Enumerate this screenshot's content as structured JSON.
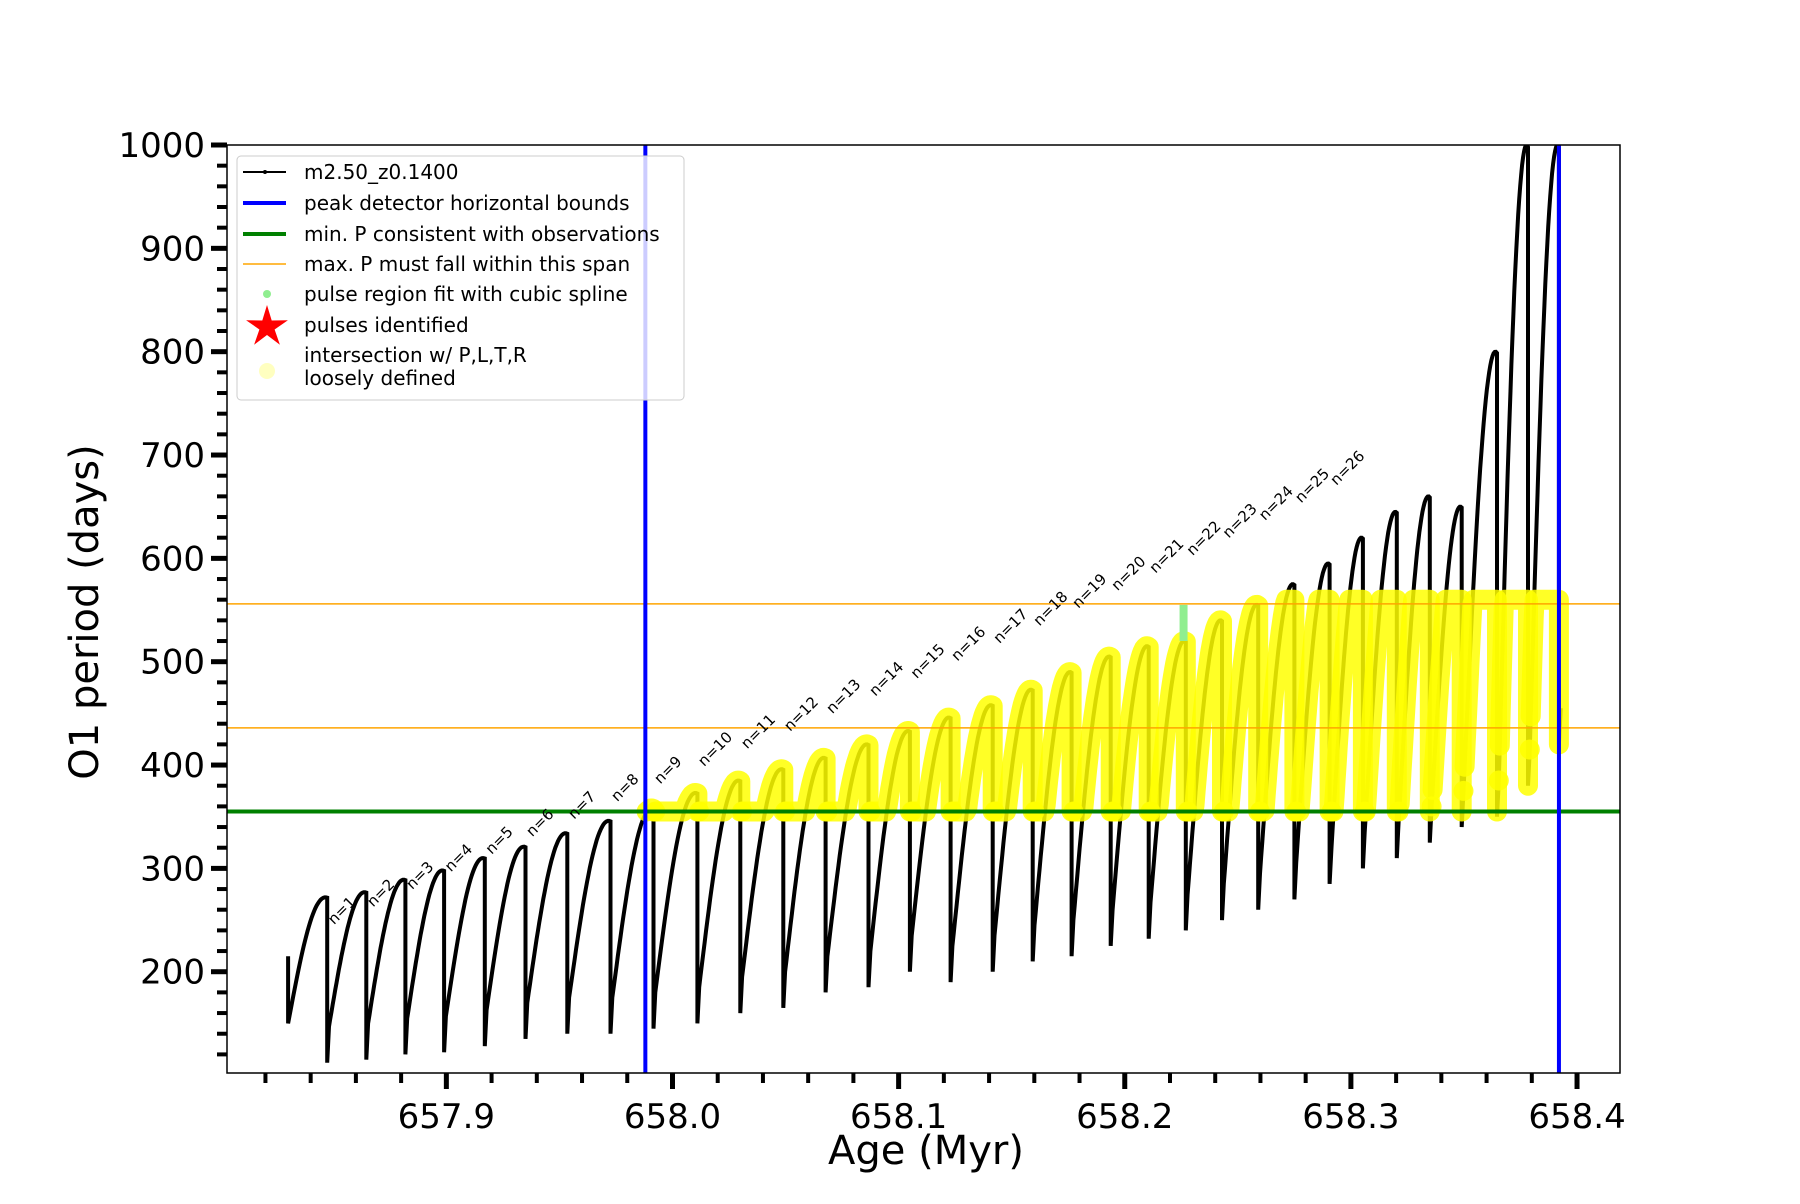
{
  "chart_data": {
    "type": "line",
    "title": "",
    "xlabel": "Age (Myr)",
    "ylabel": "O1 period (days)",
    "xlim": [
      657.803,
      658.419
    ],
    "ylim": [
      102,
      1000
    ],
    "xticks": [
      657.9,
      658.0,
      658.1,
      658.2,
      658.3,
      658.4
    ],
    "xtick_labels": [
      "657.9",
      "658.0",
      "658.1",
      "658.2",
      "658.3",
      "658.4"
    ],
    "yticks": [
      200,
      300,
      400,
      500,
      600,
      700,
      800,
      900,
      1000
    ],
    "ytick_labels": [
      "200",
      "300",
      "400",
      "500",
      "600",
      "700",
      "800",
      "900",
      "1000"
    ],
    "grid": false,
    "legend_position": "top-left",
    "legend": [
      {
        "label": "m2.50_z0.1400",
        "kind": "line-dot",
        "color": "#000000"
      },
      {
        "label": "peak detector horizontal bounds",
        "kind": "thick-line",
        "color": "#0000ff"
      },
      {
        "label": "min. P consistent with observations",
        "kind": "thick-line",
        "color": "#008000"
      },
      {
        "label": "max. P must fall within this span",
        "kind": "thin-line",
        "color": "#ffa500"
      },
      {
        "label": "pulse region fit with cubic spline",
        "kind": "dot",
        "color": "#90ee90"
      },
      {
        "label": "pulses identified",
        "kind": "star",
        "color": "#ff0000"
      },
      {
        "label": "intersection w/ P,L,T,R",
        "label2": "loosely defined",
        "kind": "big-dot",
        "color": "#ffffc0"
      }
    ],
    "vertical_bounds": [
      657.988,
      658.392
    ],
    "min_period_line": 355,
    "max_period_span": [
      436,
      556
    ],
    "series_start": {
      "age": 657.83,
      "period": 215
    },
    "pulses": {
      "drop_ages": [
        657.8473,
        657.8646,
        657.8819,
        657.899,
        657.917,
        657.935,
        657.9535,
        657.9726,
        657.9916,
        658.011,
        658.03,
        658.049,
        658.0677,
        658.0867,
        658.105,
        658.123,
        658.1416,
        658.1593,
        658.1765,
        658.1938,
        658.2106,
        658.227,
        658.243,
        658.259,
        658.275,
        658.2906,
        658.3053,
        658.3203,
        658.3349,
        658.349,
        658.3646,
        658.3783,
        658.392
      ],
      "peak_periods": [
        272,
        277,
        289,
        298,
        310,
        321,
        334,
        346,
        358,
        373,
        385,
        396,
        407,
        420,
        433,
        446,
        458,
        473,
        490,
        505,
        515,
        520,
        540,
        555,
        575,
        595,
        620,
        645,
        660,
        650,
        800,
        1000,
        1000
      ],
      "min_after_drop": [
        112,
        115,
        120,
        122,
        128,
        135,
        140,
        140,
        145,
        150,
        160,
        165,
        180,
        185,
        200,
        190,
        200,
        210,
        215,
        225,
        232,
        240,
        250,
        260,
        270,
        285,
        300,
        310,
        325,
        340,
        350,
        380,
        420
      ]
    },
    "spline_region": {
      "age": 658.226,
      "period_range": [
        520,
        555
      ]
    },
    "pulse_labels": [
      "n=1",
      "n=2",
      "n=3",
      "n=4",
      "n=5",
      "n=6",
      "n=7",
      "n=8",
      "n=9",
      "n=10",
      "n=11",
      "n=12",
      "n=13",
      "n=14",
      "n=15",
      "n=16",
      "n=17",
      "n=18",
      "n=19",
      "n=20",
      "n=21",
      "n=22",
      "n=23",
      "n=24",
      "n=25",
      "n=26"
    ],
    "colors": {
      "series": "#000000",
      "bounds": "#0000ff",
      "minP": "#008000",
      "maxP": "#ffa500",
      "highlight": "#ffff00",
      "spline": "#90ee90"
    }
  }
}
